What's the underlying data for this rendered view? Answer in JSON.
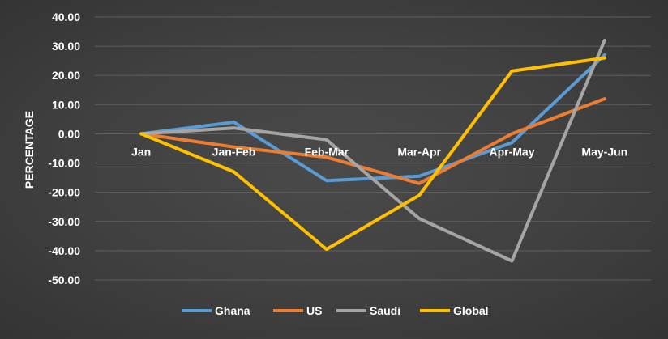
{
  "chart_data": {
    "type": "line",
    "title": "",
    "xlabel": "",
    "ylabel": "PERCENTAGE",
    "ylim": [
      -50,
      40
    ],
    "ytick_labels": [
      "40.00",
      "30.00",
      "20.00",
      "10.00",
      "0.00",
      "-10.00",
      "-20.00",
      "-30.00",
      "-40.00",
      "-50.00"
    ],
    "grid": true,
    "legend_position": "bottom",
    "categories": [
      "Jan",
      "Jan-Feb",
      "Feb-Mar",
      "Mar-Apr",
      "Apr-May",
      "May-Jun"
    ],
    "series": [
      {
        "name": "Ghana",
        "color": "#5b9bd5",
        "values": [
          0,
          4,
          -16,
          -14.5,
          -3,
          27
        ]
      },
      {
        "name": "US",
        "color": "#ed7d31",
        "values": [
          0,
          -4.5,
          -8,
          -17,
          0,
          12
        ]
      },
      {
        "name": "Saudi",
        "color": "#a5a5a5",
        "values": [
          0,
          2,
          -2,
          -29,
          -43.5,
          32
        ]
      },
      {
        "name": "Global",
        "color": "#ffc000",
        "values": [
          0,
          -13,
          -39.5,
          -21,
          21.5,
          26
        ]
      }
    ]
  }
}
